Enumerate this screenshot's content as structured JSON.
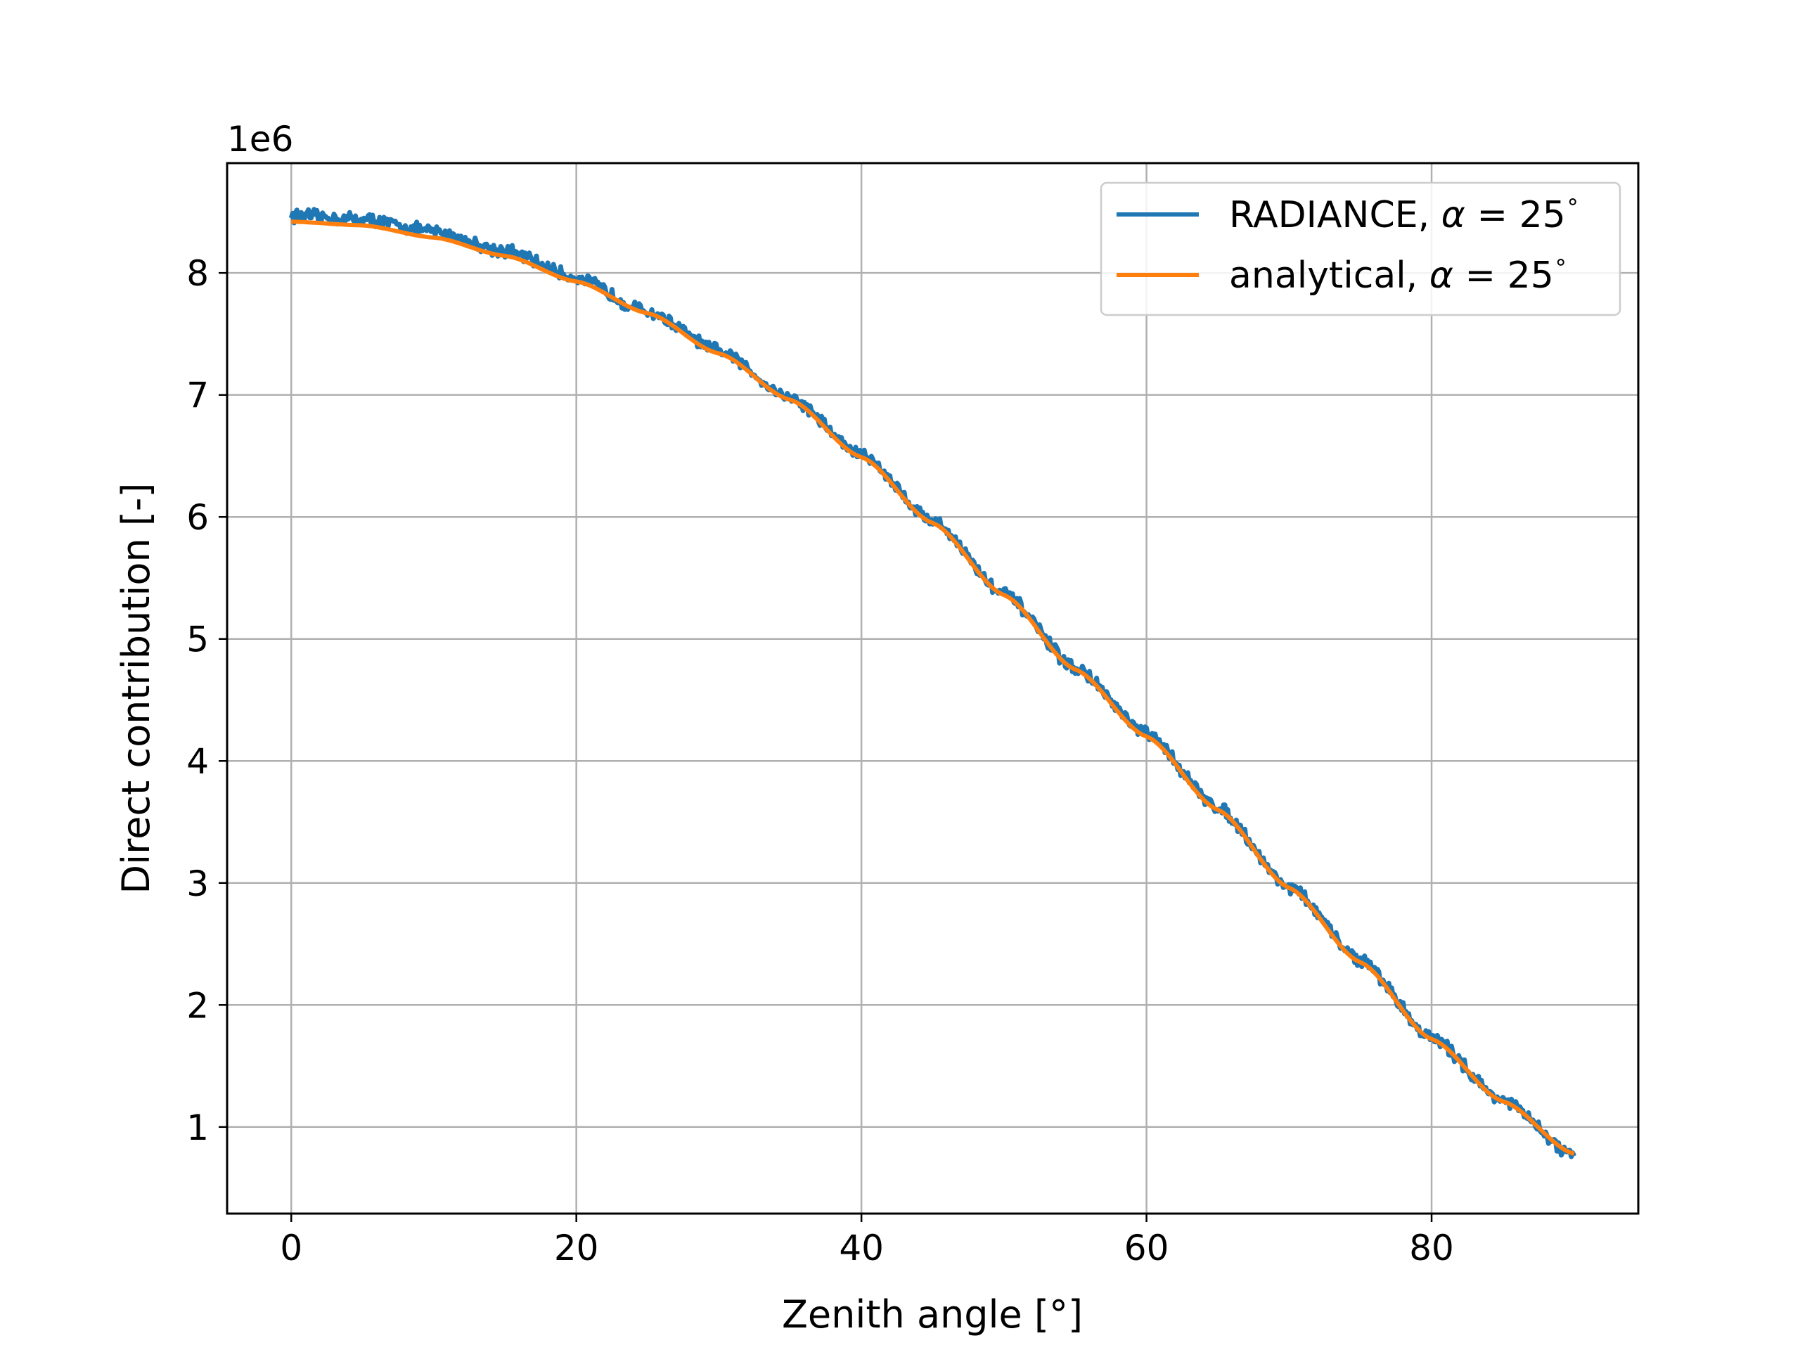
{
  "chart_data": {
    "type": "line",
    "xlabel": "Zenith angle [°]",
    "ylabel": "Direct contribution [-]",
    "y_offset_label": "1e6",
    "y_scale": 1000000,
    "xlim": [
      -4.5,
      94.5
    ],
    "ylim": [
      0.29,
      8.9
    ],
    "xticks": [
      0,
      20,
      40,
      60,
      80
    ],
    "xtick_labels": [
      "0",
      "20",
      "40",
      "60",
      "80"
    ],
    "yticks": [
      1,
      2,
      3,
      4,
      5,
      6,
      7,
      8
    ],
    "ytick_labels": [
      "1",
      "2",
      "3",
      "4",
      "5",
      "6",
      "7",
      "8"
    ],
    "grid": true,
    "legend_position": "top-right",
    "series": [
      {
        "name": "RADIANCE, α = 25°",
        "legend_main": "RADIANCE, ",
        "legend_alpha": "α",
        "legend_eq": " = 25",
        "legend_deg": "∘",
        "color": "#1f77b4",
        "style": "noisy",
        "x": [
          0,
          5,
          10,
          15,
          20,
          25,
          30,
          35,
          40,
          45,
          50,
          55,
          60,
          65,
          70,
          75,
          80,
          85,
          90
        ],
        "y": [
          8.47,
          8.44,
          8.34,
          8.18,
          7.96,
          7.68,
          7.36,
          6.98,
          6.51,
          5.97,
          5.37,
          4.76,
          4.22,
          3.62,
          2.97,
          2.37,
          1.73,
          1.22,
          0.76
        ]
      },
      {
        "name": "analytical, α = 25°",
        "legend_main": "analytical, ",
        "legend_alpha": "α",
        "legend_eq": " = 25",
        "legend_deg": "∘",
        "color": "#ff7f0e",
        "style": "smooth",
        "x": [
          0,
          5,
          10,
          15,
          20,
          25,
          30,
          35,
          40,
          45,
          50,
          55,
          60,
          65,
          70,
          75,
          80,
          85,
          90
        ],
        "y": [
          8.42,
          8.39,
          8.29,
          8.14,
          7.93,
          7.67,
          7.34,
          6.96,
          6.49,
          5.95,
          5.36,
          4.75,
          4.2,
          3.6,
          2.96,
          2.35,
          1.72,
          1.21,
          0.78
        ]
      }
    ]
  }
}
